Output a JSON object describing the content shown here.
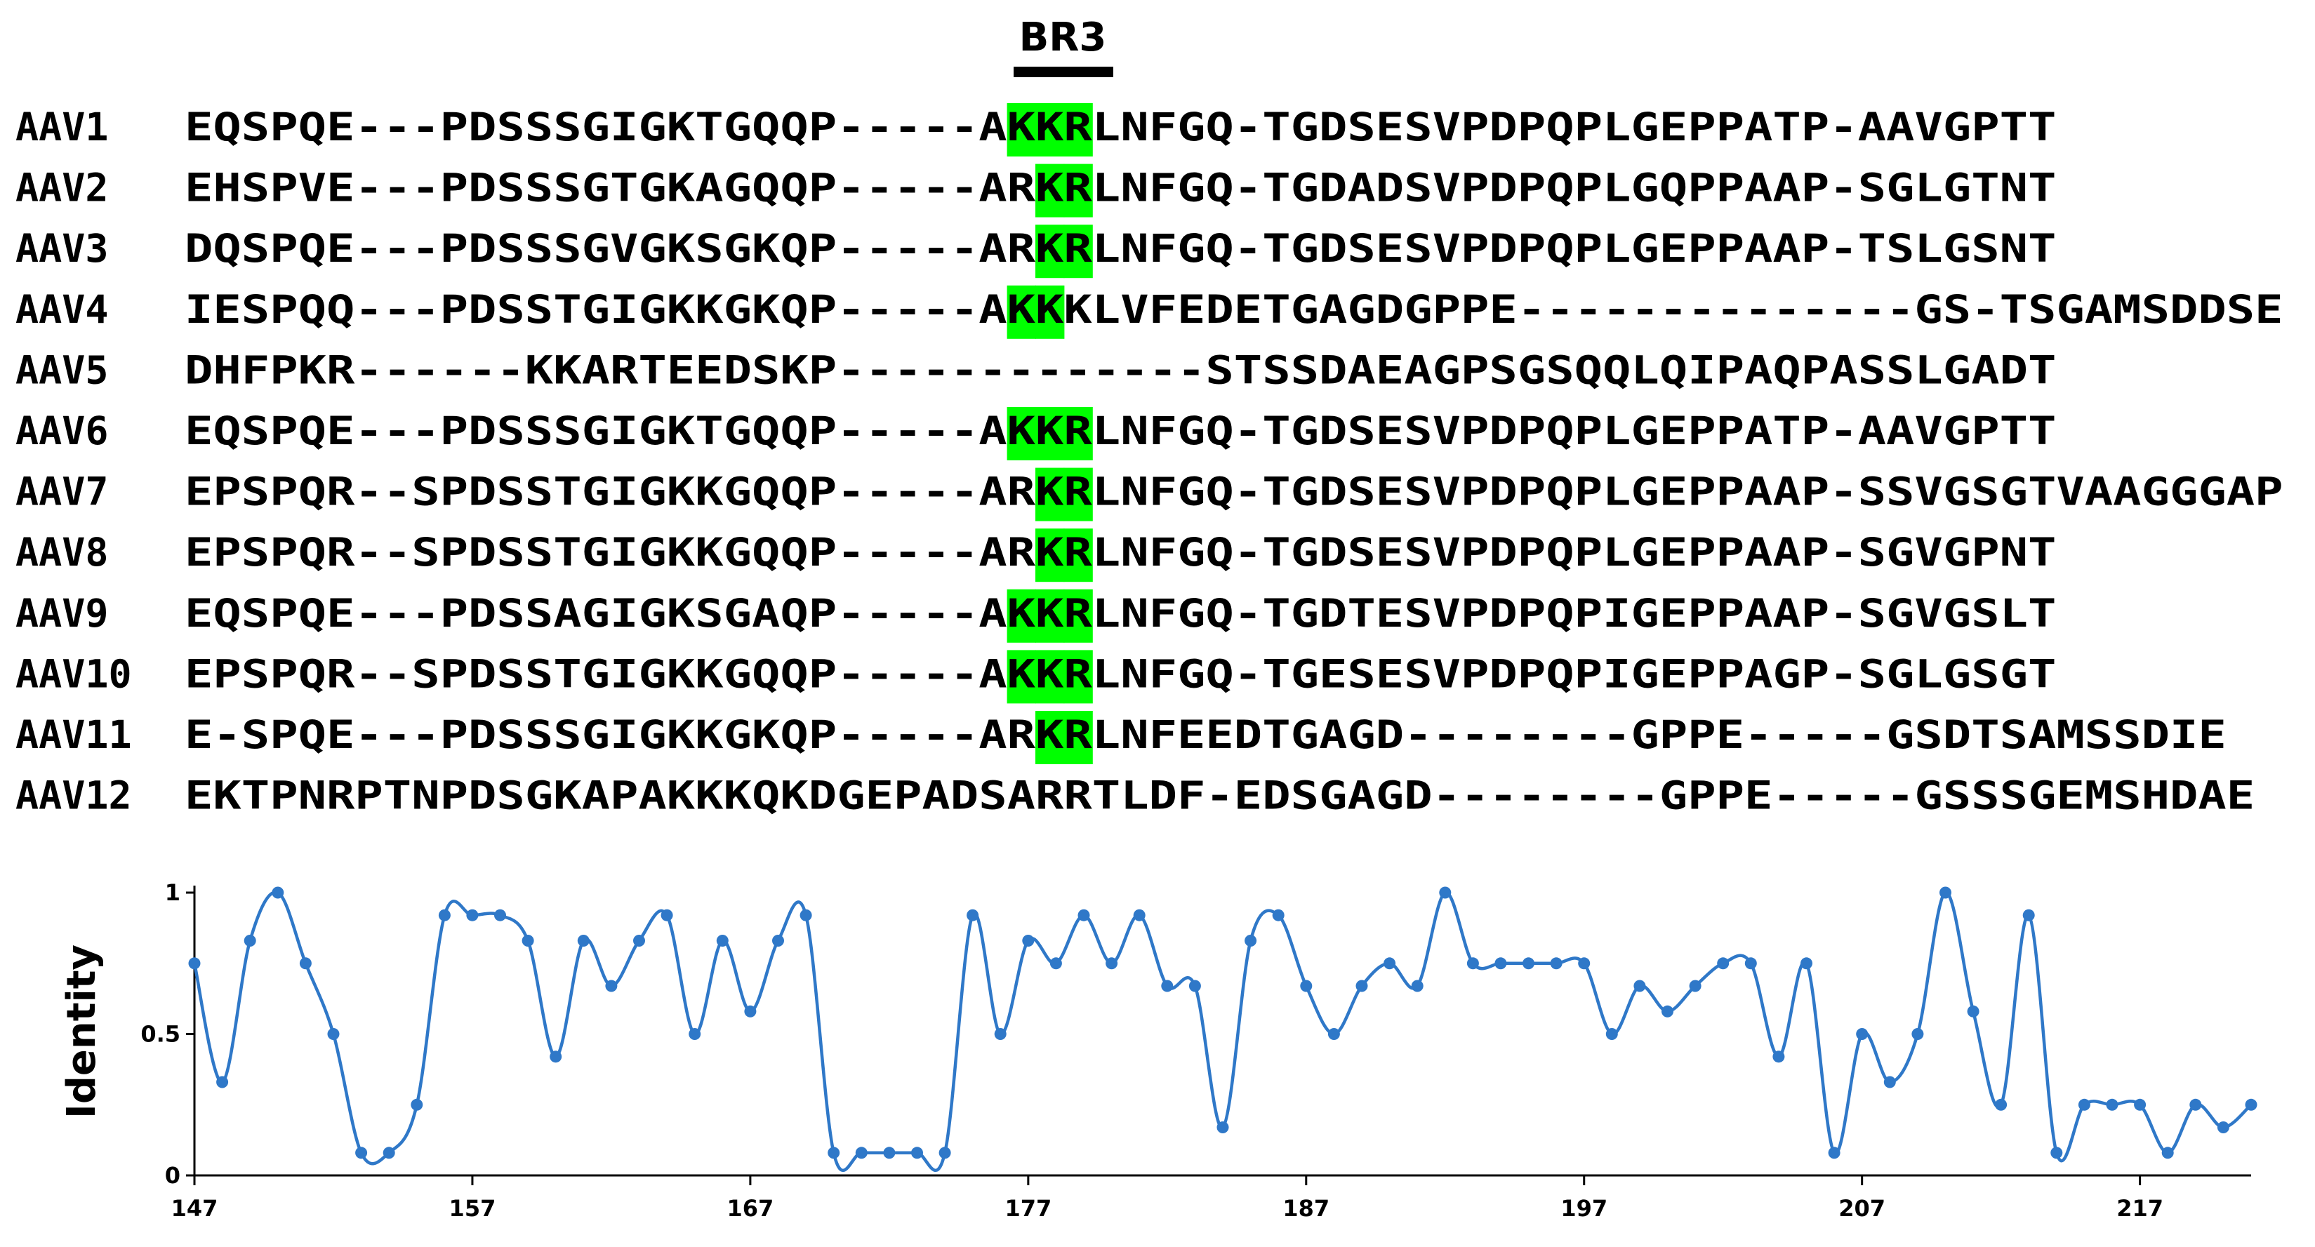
{
  "alignment": {
    "region_label": "BR3",
    "highlight_color": "#00ff00",
    "rows": [
      {
        "name": "AAV1",
        "seq": "EQSPQE---PDSSSGIGKTGQQP-----AKKRLNFGQ-TGDSESVPDPQPLGEPPATP-AAVGPTT",
        "highlight": [
          29,
          30,
          31
        ]
      },
      {
        "name": "AAV2",
        "seq": "EHSPVE---PDSSSGTGKAGQQP-----ARKRLNFGQ-TGDADSVPDPQPLGQPPAAP-SGLGTNT",
        "highlight": [
          30,
          31
        ]
      },
      {
        "name": "AAV3",
        "seq": "DQSPQE---PDSSSGVGKSGKQP-----ARKRLNFGQ-TGDSESVPDPQPLGEPPAAP-TSLGSNT",
        "highlight": [
          30,
          31
        ]
      },
      {
        "name": "AAV4",
        "seq": "IESPQQ---PDSSTGIGKKGKQP-----AKKKLVFEDETGAGDGPPE--------------GS-TSGAMSDDSE",
        "highlight": [
          29,
          30
        ]
      },
      {
        "name": "AAV5",
        "seq": "DHFPKR------KKARTEEDSKP-------------STSSDAEAGPSGSQQLQIPAQPASSLGADT",
        "highlight": []
      },
      {
        "name": "AAV6",
        "seq": "EQSPQE---PDSSSGIGKTGQQP-----AKKRLNFGQ-TGDSESVPDPQPLGEPPATP-AAVGPTT",
        "highlight": [
          29,
          30,
          31
        ]
      },
      {
        "name": "AAV7",
        "seq": "EPSPQR--SPDSSTGIGKKGQQP-----ARKRLNFGQ-TGDSESVPDPQPLGEPPAAP-SSVGSGTVAAGGGAP",
        "highlight": [
          30,
          31
        ]
      },
      {
        "name": "AAV8",
        "seq": "EPSPQR--SPDSSTGIGKKGQQP-----ARKRLNFGQ-TGDSESVPDPQPLGEPPAAP-SGVGPNT",
        "highlight": [
          30,
          31
        ]
      },
      {
        "name": "AAV9",
        "seq": "EQSPQE---PDSSAGIGKSGAQP-----AKKRLNFGQ-TGDTESVPDPQPIGEPPAAP-SGVGSLT",
        "highlight": [
          29,
          30,
          31
        ]
      },
      {
        "name": "AAV10",
        "seq": "EPSPQR--SPDSSTGIGKKGQQP-----AKKRLNFGQ-TGESESVPDPQPIGEPPAGP-SGLGSGT",
        "highlight": [
          29,
          30,
          31
        ]
      },
      {
        "name": "AAV11",
        "seq": "E-SPQE---PDSSSGIGKKGKQP-----ARKRLNFEEDTGAGD--------GPPE-----GSDTSAMSSDIE",
        "highlight": [
          30,
          31
        ]
      },
      {
        "name": "AAV12",
        "seq": "EKTPNRPTNPDSGKAPAKKKQKDGEPADSARRTLDF-EDSGAGD--------GPPE-----GSSSGEMSHDAE",
        "highlight": []
      }
    ]
  },
  "chart_data": {
    "type": "line",
    "ylabel": "Identity",
    "xlabel": "",
    "xlim": [
      147,
      221
    ],
    "ylim": [
      0,
      1
    ],
    "xticks": [
      147,
      157,
      167,
      177,
      187,
      197,
      207,
      217
    ],
    "yticks": [
      0,
      0.5,
      1
    ],
    "yticklabels": [
      "0",
      "0.5",
      "1"
    ],
    "grid": false,
    "line_color": "#2f78c8",
    "x_start": 147,
    "values": [
      0.75,
      0.33,
      0.83,
      1.0,
      0.75,
      0.5,
      0.08,
      0.08,
      0.25,
      0.92,
      0.92,
      0.92,
      0.83,
      0.42,
      0.83,
      0.67,
      0.83,
      0.92,
      0.5,
      0.83,
      0.58,
      0.83,
      0.92,
      0.08,
      0.08,
      0.08,
      0.08,
      0.08,
      0.92,
      0.5,
      0.83,
      0.75,
      0.92,
      0.75,
      0.92,
      0.67,
      0.67,
      0.17,
      0.83,
      0.92,
      0.67,
      0.5,
      0.67,
      0.75,
      0.67,
      1.0,
      0.75,
      0.75,
      0.75,
      0.75,
      0.75,
      0.5,
      0.67,
      0.58,
      0.67,
      0.75,
      0.75,
      0.42,
      0.75,
      0.08,
      0.5,
      0.33,
      0.5,
      1.0,
      0.58,
      0.25,
      0.92,
      0.08,
      0.25,
      0.25,
      0.25,
      0.08,
      0.25,
      0.17,
      0.25
    ]
  }
}
